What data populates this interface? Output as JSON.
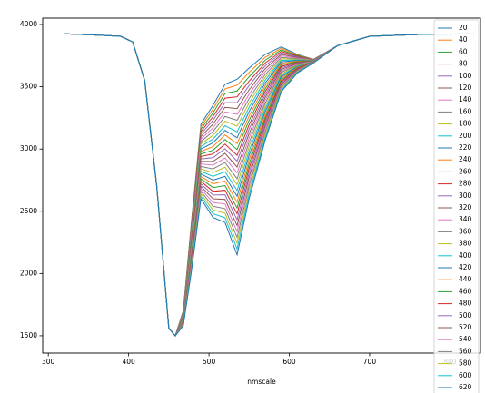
{
  "chart_data": {
    "type": "line",
    "xlabel": "nmscale",
    "xlim": [
      293,
      838
    ],
    "ylim": [
      1361,
      4051
    ],
    "xticks": [
      300,
      400,
      500,
      600,
      700,
      800
    ],
    "yticks": [
      1500,
      2000,
      2500,
      3000,
      3500,
      4000
    ],
    "grid": false,
    "legend": "upper right",
    "x": [
      320,
      360,
      390,
      405,
      420,
      435,
      450,
      458,
      468,
      478,
      490,
      505,
      520,
      535,
      550,
      570,
      590,
      610,
      630,
      660,
      700,
      760,
      830
    ],
    "series": [
      {
        "name": "20",
        "color": "#1f77b4",
        "values": [
          3925,
          3915,
          3905,
          3860,
          3550,
          2700,
          1560,
          1500,
          1700,
          2400,
          3200,
          3350,
          3520,
          3560,
          3650,
          3760,
          3820,
          3760,
          3720,
          3830,
          3905,
          3920,
          3925
        ]
      },
      {
        "name": "40",
        "color": "#ff7f0e",
        "values": [
          3925,
          3915,
          3905,
          3860,
          3550,
          2700,
          1560,
          1500,
          1696,
          2387,
          3180,
          3320,
          3483,
          3513,
          3615,
          3737,
          3808,
          3755,
          3719,
          3830,
          3905,
          3920,
          3925
        ]
      },
      {
        "name": "60",
        "color": "#2ca02c",
        "values": [
          3925,
          3915,
          3905,
          3860,
          3550,
          2700,
          1560,
          1500,
          1692,
          2374,
          3160,
          3290,
          3446,
          3466,
          3580,
          3714,
          3796,
          3750,
          3718,
          3830,
          3905,
          3920,
          3925
        ]
      },
      {
        "name": "80",
        "color": "#d62728",
        "values": [
          3925,
          3915,
          3905,
          3860,
          3550,
          2700,
          1560,
          1500,
          1688,
          2361,
          3140,
          3260,
          3409,
          3419,
          3545,
          3691,
          3784,
          3745,
          3717,
          3830,
          3905,
          3920,
          3925
        ]
      },
      {
        "name": "100",
        "color": "#9467bd",
        "values": [
          3925,
          3915,
          3905,
          3860,
          3550,
          2700,
          1560,
          1500,
          1684,
          2348,
          3120,
          3230,
          3372,
          3372,
          3510,
          3668,
          3772,
          3740,
          3716,
          3830,
          3905,
          3920,
          3925
        ]
      },
      {
        "name": "120",
        "color": "#8c564b",
        "values": [
          3925,
          3915,
          3905,
          3860,
          3550,
          2700,
          1560,
          1500,
          1680,
          2335,
          3100,
          3200,
          3335,
          3325,
          3475,
          3645,
          3760,
          3735,
          3715,
          3830,
          3905,
          3920,
          3925
        ]
      },
      {
        "name": "140",
        "color": "#e377c2",
        "values": [
          3925,
          3915,
          3905,
          3860,
          3550,
          2700,
          1560,
          1500,
          1676,
          2322,
          3080,
          3170,
          3298,
          3278,
          3440,
          3622,
          3748,
          3730,
          3714,
          3830,
          3905,
          3920,
          3925
        ]
      },
      {
        "name": "160",
        "color": "#7f7f7f",
        "values": [
          3925,
          3915,
          3905,
          3860,
          3550,
          2700,
          1560,
          1500,
          1672,
          2309,
          3060,
          3140,
          3261,
          3231,
          3405,
          3599,
          3736,
          3725,
          3713,
          3830,
          3905,
          3920,
          3925
        ]
      },
      {
        "name": "180",
        "color": "#bcbd22",
        "values": [
          3925,
          3915,
          3905,
          3860,
          3550,
          2700,
          1560,
          1500,
          1668,
          2296,
          3040,
          3110,
          3224,
          3184,
          3370,
          3576,
          3724,
          3720,
          3712,
          3830,
          3905,
          3920,
          3925
        ]
      },
      {
        "name": "200",
        "color": "#17becf",
        "values": [
          3925,
          3915,
          3905,
          3860,
          3550,
          2700,
          1560,
          1500,
          1664,
          2283,
          3020,
          3080,
          3187,
          3137,
          3335,
          3553,
          3712,
          3715,
          3711,
          3830,
          3905,
          3920,
          3925
        ]
      },
      {
        "name": "220",
        "color": "#1f77b4",
        "values": [
          3925,
          3915,
          3905,
          3860,
          3550,
          2700,
          1560,
          1500,
          1660,
          2270,
          3000,
          3050,
          3150,
          3090,
          3300,
          3530,
          3700,
          3710,
          3710,
          3830,
          3905,
          3920,
          3925
        ]
      },
      {
        "name": "240",
        "color": "#ff7f0e",
        "values": [
          3925,
          3915,
          3905,
          3860,
          3550,
          2700,
          1560,
          1500,
          1656,
          2257,
          2980,
          3020,
          3113,
          3043,
          3265,
          3507,
          3688,
          3705,
          3709,
          3830,
          3905,
          3920,
          3925
        ]
      },
      {
        "name": "260",
        "color": "#2ca02c",
        "values": [
          3925,
          3915,
          3905,
          3860,
          3550,
          2700,
          1560,
          1500,
          1652,
          2244,
          2960,
          2990,
          3076,
          2996,
          3230,
          3484,
          3676,
          3700,
          3708,
          3830,
          3905,
          3920,
          3925
        ]
      },
      {
        "name": "280",
        "color": "#d62728",
        "values": [
          3925,
          3915,
          3905,
          3860,
          3550,
          2700,
          1560,
          1500,
          1648,
          2231,
          2940,
          2960,
          3039,
          2949,
          3195,
          3461,
          3664,
          3695,
          3707,
          3830,
          3905,
          3920,
          3925
        ]
      },
      {
        "name": "300",
        "color": "#9467bd",
        "values": [
          3925,
          3915,
          3905,
          3860,
          3550,
          2700,
          1560,
          1500,
          1644,
          2218,
          2920,
          2930,
          3002,
          2902,
          3160,
          3438,
          3652,
          3690,
          3706,
          3830,
          3905,
          3920,
          3925
        ]
      },
      {
        "name": "320",
        "color": "#8c564b",
        "values": [
          3925,
          3915,
          3905,
          3860,
          3550,
          2700,
          1560,
          1500,
          1640,
          2205,
          2900,
          2900,
          2965,
          2855,
          3125,
          3415,
          3640,
          3685,
          3705,
          3830,
          3905,
          3920,
          3925
        ]
      },
      {
        "name": "340",
        "color": "#e377c2",
        "values": [
          3925,
          3915,
          3905,
          3860,
          3550,
          2700,
          1560,
          1500,
          1636,
          2192,
          2880,
          2870,
          2928,
          2808,
          3090,
          3392,
          3628,
          3680,
          3704,
          3830,
          3905,
          3920,
          3925
        ]
      },
      {
        "name": "360",
        "color": "#7f7f7f",
        "values": [
          3925,
          3915,
          3905,
          3860,
          3550,
          2700,
          1560,
          1500,
          1632,
          2179,
          2860,
          2840,
          2891,
          2761,
          3055,
          3369,
          3616,
          3675,
          3703,
          3830,
          3905,
          3920,
          3925
        ]
      },
      {
        "name": "380",
        "color": "#bcbd22",
        "values": [
          3925,
          3915,
          3905,
          3860,
          3550,
          2700,
          1560,
          1500,
          1628,
          2166,
          2840,
          2810,
          2854,
          2714,
          3020,
          3346,
          3604,
          3670,
          3702,
          3830,
          3905,
          3920,
          3925
        ]
      },
      {
        "name": "400",
        "color": "#17becf",
        "values": [
          3925,
          3915,
          3905,
          3860,
          3550,
          2700,
          1560,
          1500,
          1624,
          2153,
          2820,
          2780,
          2817,
          2667,
          2985,
          3323,
          3592,
          3665,
          3701,
          3830,
          3905,
          3920,
          3925
        ]
      },
      {
        "name": "420",
        "color": "#1f77b4",
        "values": [
          3925,
          3915,
          3905,
          3860,
          3550,
          2700,
          1560,
          1500,
          1620,
          2140,
          2800,
          2750,
          2780,
          2620,
          2950,
          3300,
          3580,
          3660,
          3700,
          3830,
          3905,
          3920,
          3925
        ]
      },
      {
        "name": "440",
        "color": "#ff7f0e",
        "values": [
          3925,
          3915,
          3905,
          3860,
          3550,
          2700,
          1560,
          1500,
          1616,
          2127,
          2780,
          2720,
          2743,
          2573,
          2915,
          3277,
          3568,
          3655,
          3699,
          3830,
          3905,
          3920,
          3925
        ]
      },
      {
        "name": "460",
        "color": "#2ca02c",
        "values": [
          3925,
          3915,
          3905,
          3860,
          3550,
          2700,
          1560,
          1500,
          1612,
          2114,
          2760,
          2690,
          2706,
          2526,
          2880,
          3254,
          3556,
          3650,
          3698,
          3830,
          3905,
          3920,
          3925
        ]
      },
      {
        "name": "480",
        "color": "#d62728",
        "values": [
          3925,
          3915,
          3905,
          3860,
          3550,
          2700,
          1560,
          1500,
          1608,
          2101,
          2740,
          2660,
          2669,
          2479,
          2845,
          3231,
          3544,
          3645,
          3697,
          3830,
          3905,
          3920,
          3925
        ]
      },
      {
        "name": "500",
        "color": "#9467bd",
        "values": [
          3925,
          3915,
          3905,
          3860,
          3550,
          2700,
          1560,
          1500,
          1604,
          2088,
          2720,
          2630,
          2632,
          2432,
          2810,
          3208,
          3532,
          3640,
          3696,
          3830,
          3905,
          3920,
          3925
        ]
      },
      {
        "name": "520",
        "color": "#8c564b",
        "values": [
          3925,
          3915,
          3905,
          3860,
          3550,
          2700,
          1560,
          1500,
          1600,
          2075,
          2700,
          2600,
          2595,
          2385,
          2775,
          3185,
          3520,
          3635,
          3695,
          3830,
          3905,
          3920,
          3925
        ]
      },
      {
        "name": "540",
        "color": "#e377c2",
        "values": [
          3925,
          3915,
          3905,
          3860,
          3550,
          2700,
          1560,
          1500,
          1596,
          2062,
          2680,
          2570,
          2558,
          2338,
          2740,
          3162,
          3508,
          3630,
          3694,
          3830,
          3905,
          3920,
          3925
        ]
      },
      {
        "name": "560",
        "color": "#7f7f7f",
        "values": [
          3925,
          3915,
          3905,
          3860,
          3550,
          2700,
          1560,
          1500,
          1592,
          2049,
          2660,
          2540,
          2521,
          2291,
          2705,
          3139,
          3496,
          3625,
          3693,
          3830,
          3905,
          3920,
          3925
        ]
      },
      {
        "name": "580",
        "color": "#bcbd22",
        "values": [
          3925,
          3915,
          3905,
          3860,
          3550,
          2700,
          1560,
          1500,
          1588,
          2036,
          2640,
          2510,
          2484,
          2244,
          2670,
          3116,
          3484,
          3620,
          3692,
          3830,
          3905,
          3920,
          3925
        ]
      },
      {
        "name": "600",
        "color": "#17becf",
        "values": [
          3925,
          3915,
          3905,
          3860,
          3550,
          2700,
          1560,
          1500,
          1584,
          2023,
          2620,
          2480,
          2447,
          2197,
          2635,
          3093,
          3472,
          3615,
          3691,
          3830,
          3905,
          3920,
          3925
        ]
      },
      {
        "name": "620",
        "color": "#1f77b4",
        "values": [
          3925,
          3915,
          3905,
          3860,
          3550,
          2700,
          1560,
          1500,
          1580,
          2010,
          2600,
          2450,
          2410,
          2150,
          2600,
          3070,
          3460,
          3610,
          3690,
          3830,
          3905,
          3920,
          3925
        ]
      }
    ]
  }
}
